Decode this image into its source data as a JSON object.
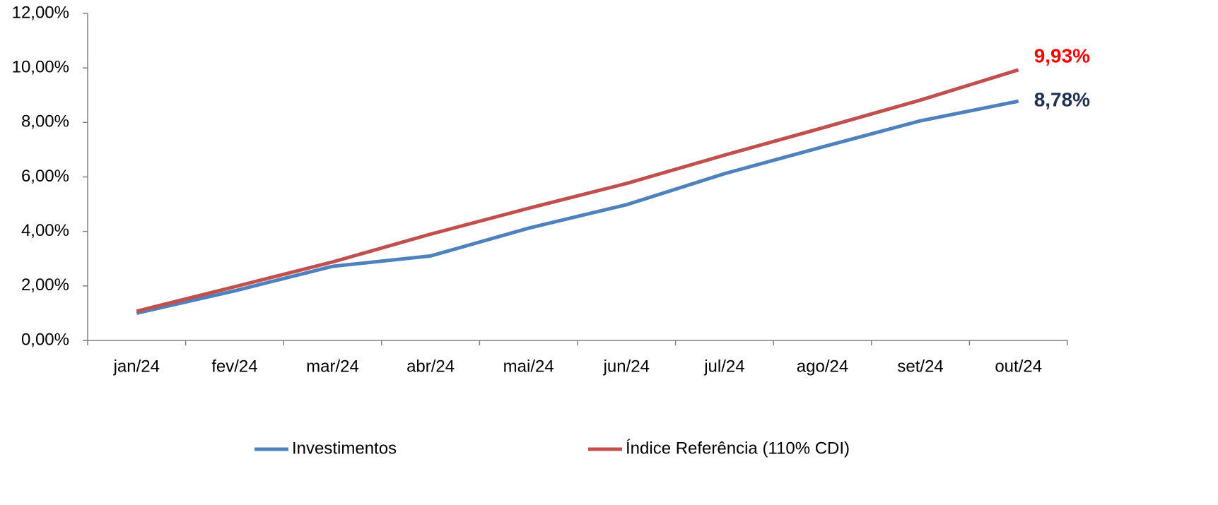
{
  "chart_data": {
    "type": "line",
    "categories": [
      "jan/24",
      "fev/24",
      "mar/24",
      "abr/24",
      "mai/24",
      "jun/24",
      "jul/24",
      "ago/24",
      "set/24",
      "out/24"
    ],
    "series": [
      {
        "name": "Investimentos",
        "color": "#4f81bd",
        "label_color": "#1f3050",
        "values": [
          1.0,
          1.82,
          2.72,
          3.1,
          4.12,
          4.98,
          6.12,
          7.1,
          8.06,
          8.78
        ],
        "value_labels": [
          null,
          null,
          null,
          null,
          null,
          null,
          null,
          null,
          null,
          "8,78%"
        ]
      },
      {
        "name": "Índice Referência (110% CDI)",
        "color": "#c0504d",
        "label_color": "#ff0000",
        "values": [
          1.07,
          1.97,
          2.88,
          3.9,
          4.85,
          5.76,
          6.8,
          7.8,
          8.82,
          9.93
        ],
        "value_labels": [
          null,
          null,
          null,
          null,
          null,
          null,
          null,
          null,
          null,
          "9,93%"
        ]
      }
    ],
    "ylim": [
      0,
      12
    ],
    "yticks": [
      {
        "value": 0,
        "label": "0,00%"
      },
      {
        "value": 2,
        "label": "2,00%"
      },
      {
        "value": 4,
        "label": "4,00%"
      },
      {
        "value": 6,
        "label": "6,00%"
      },
      {
        "value": 8,
        "label": "8,00%"
      },
      {
        "value": 10,
        "label": "10,00%"
      },
      {
        "value": 12,
        "label": "12,00%"
      }
    ],
    "grid": false,
    "legend": "bottom"
  }
}
